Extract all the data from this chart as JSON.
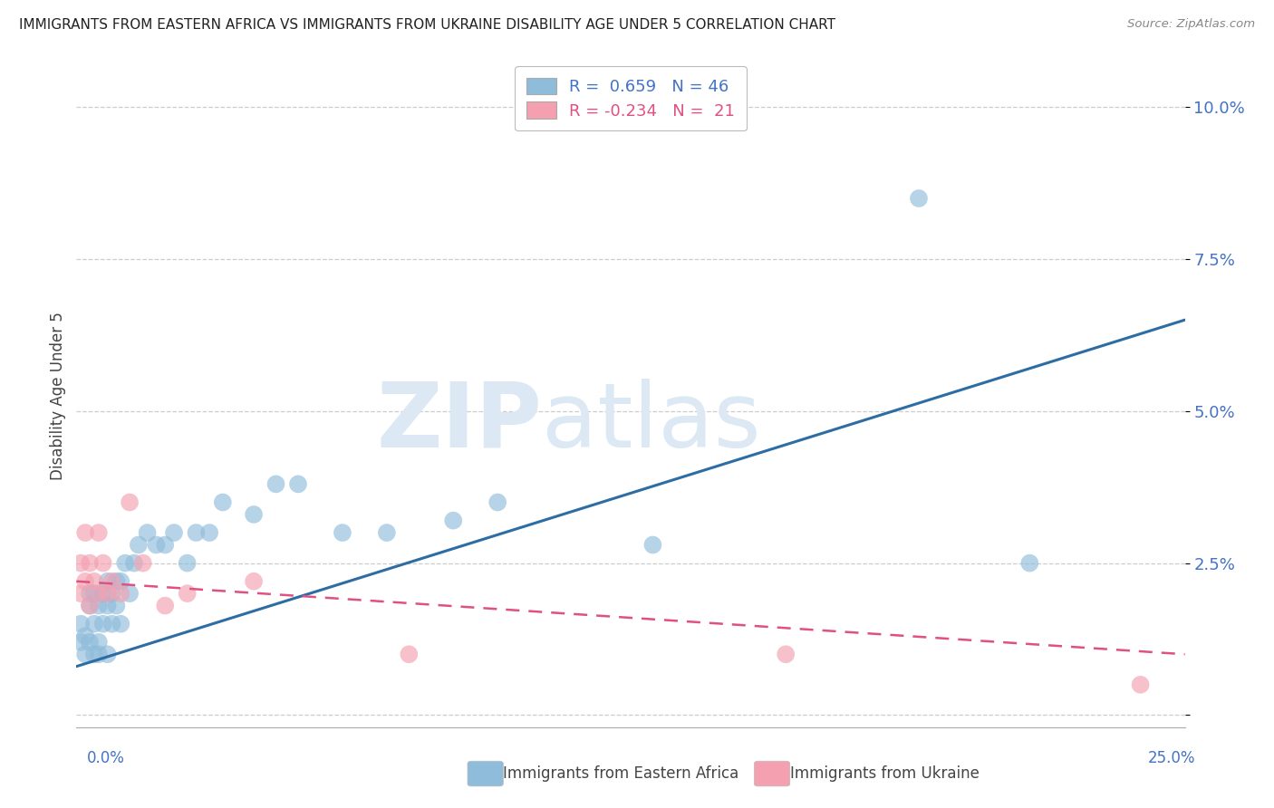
{
  "title": "IMMIGRANTS FROM EASTERN AFRICA VS IMMIGRANTS FROM UKRAINE DISABILITY AGE UNDER 5 CORRELATION CHART",
  "source": "Source: ZipAtlas.com",
  "ylabel": "Disability Age Under 5",
  "xlim": [
    0,
    0.25
  ],
  "ylim": [
    -0.002,
    0.107
  ],
  "yticks": [
    0.0,
    0.025,
    0.05,
    0.075,
    0.1
  ],
  "ytick_labels": [
    "",
    "2.5%",
    "5.0%",
    "7.5%",
    "10.0%"
  ],
  "watermark_line1": "ZIP",
  "watermark_line2": "atlas",
  "legend_r1": "R =  0.659   N = 46",
  "legend_r2": "R = -0.234   N =  21",
  "eastern_africa_color": "#8FBCDB",
  "ukraine_color": "#F4A0B0",
  "trendline_eastern_color": "#2E6DA4",
  "trendline_ukraine_color": "#E05080",
  "background_color": "#ffffff",
  "grid_color": "#c8c8c8",
  "axis_label_color": "#4472c4",
  "title_color": "#222222",
  "source_color": "#888888",
  "legend_text_color_blue": "#4472c4",
  "legend_text_color_pink": "#E05080",
  "bottom_legend_color": "#444444",
  "watermark_color": "#dce8f3",
  "ea_x": [
    0.001,
    0.001,
    0.002,
    0.002,
    0.003,
    0.003,
    0.003,
    0.004,
    0.004,
    0.004,
    0.005,
    0.005,
    0.005,
    0.006,
    0.006,
    0.007,
    0.007,
    0.007,
    0.008,
    0.008,
    0.009,
    0.009,
    0.01,
    0.01,
    0.011,
    0.012,
    0.013,
    0.014,
    0.016,
    0.018,
    0.02,
    0.022,
    0.025,
    0.027,
    0.03,
    0.033,
    0.04,
    0.045,
    0.05,
    0.06,
    0.07,
    0.085,
    0.095,
    0.13,
    0.19,
    0.215
  ],
  "ea_y": [
    0.012,
    0.015,
    0.01,
    0.013,
    0.018,
    0.012,
    0.02,
    0.015,
    0.02,
    0.01,
    0.018,
    0.012,
    0.01,
    0.02,
    0.015,
    0.022,
    0.018,
    0.01,
    0.02,
    0.015,
    0.022,
    0.018,
    0.022,
    0.015,
    0.025,
    0.02,
    0.025,
    0.028,
    0.03,
    0.028,
    0.028,
    0.03,
    0.025,
    0.03,
    0.03,
    0.035,
    0.033,
    0.038,
    0.038,
    0.03,
    0.03,
    0.032,
    0.035,
    0.028,
    0.085,
    0.025
  ],
  "uk_x": [
    0.001,
    0.001,
    0.002,
    0.002,
    0.003,
    0.003,
    0.004,
    0.005,
    0.005,
    0.006,
    0.007,
    0.008,
    0.01,
    0.012,
    0.015,
    0.02,
    0.025,
    0.04,
    0.075,
    0.16,
    0.24
  ],
  "uk_y": [
    0.02,
    0.025,
    0.022,
    0.03,
    0.018,
    0.025,
    0.022,
    0.02,
    0.03,
    0.025,
    0.02,
    0.022,
    0.02,
    0.035,
    0.025,
    0.018,
    0.02,
    0.022,
    0.01,
    0.01,
    0.005
  ],
  "trendline_ea_x0": 0.0,
  "trendline_ea_y0": 0.008,
  "trendline_ea_x1": 0.25,
  "trendline_ea_y1": 0.065,
  "trendline_uk_x0": 0.0,
  "trendline_uk_y0": 0.022,
  "trendline_uk_x1": 0.25,
  "trendline_uk_y1": 0.01
}
